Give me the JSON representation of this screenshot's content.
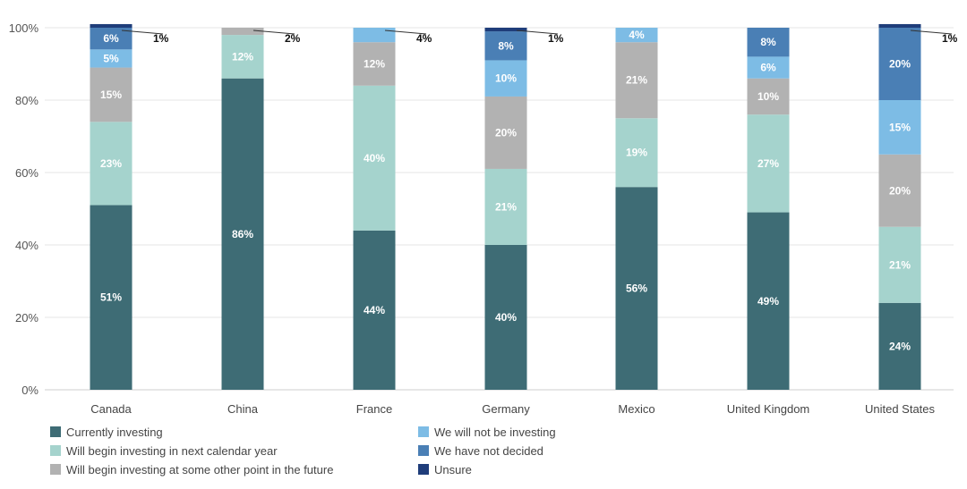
{
  "chart_data": {
    "type": "bar",
    "stacked": true,
    "categories": [
      "Canada",
      "China",
      "France",
      "Germany",
      "Mexico",
      "United Kingdom",
      "United States"
    ],
    "series": [
      {
        "name": "Currently investing",
        "color": "#3e6c75",
        "values": [
          51,
          86,
          44,
          40,
          56,
          49,
          24
        ]
      },
      {
        "name": "Will begin investing in next calendar year",
        "color": "#a5d3cd",
        "values": [
          23,
          12,
          40,
          21,
          19,
          27,
          21
        ]
      },
      {
        "name": "Will begin investing at some other point in the future",
        "color": "#b2b2b2",
        "values": [
          15,
          2,
          12,
          20,
          21,
          10,
          20
        ]
      },
      {
        "name": "We will not be investing",
        "color": "#7dbce5",
        "values": [
          5,
          0,
          4,
          10,
          4,
          6,
          15
        ]
      },
      {
        "name": "We have not decided",
        "color": "#4a7fb5",
        "values": [
          6,
          0,
          0,
          8,
          0,
          8,
          20
        ]
      },
      {
        "name": "Unsure",
        "color": "#1f3d7a",
        "values": [
          1,
          0,
          0,
          1,
          0,
          0,
          1
        ]
      }
    ],
    "segment_labels": [
      [
        "51%",
        "86%",
        "44%",
        "40%",
        "56%",
        "49%",
        "24%"
      ],
      [
        "23%",
        "12%",
        "40%",
        "21%",
        "19%",
        "27%",
        "21%"
      ],
      [
        "15%",
        "",
        "12%",
        "20%",
        "21%",
        "10%",
        "20%"
      ],
      [
        "5%",
        "",
        "",
        "10%",
        "4%",
        "6%",
        "15%"
      ],
      [
        "6%",
        "",
        "",
        "8%",
        "",
        "8%",
        "20%"
      ],
      [
        "",
        "",
        "",
        "",
        "",
        "",
        ""
      ]
    ],
    "callouts": [
      {
        "category": "Canada",
        "label": "1%"
      },
      {
        "category": "China",
        "label": "2%"
      },
      {
        "category": "France",
        "label": "4%"
      },
      {
        "category": "Germany",
        "label": "1%"
      },
      {
        "category": "United States",
        "label": "1%"
      }
    ],
    "y_ticks": [
      "0%",
      "20%",
      "40%",
      "60%",
      "80%",
      "100%"
    ],
    "ylim": [
      0,
      100
    ],
    "grid": true,
    "legend_position": "bottom"
  }
}
